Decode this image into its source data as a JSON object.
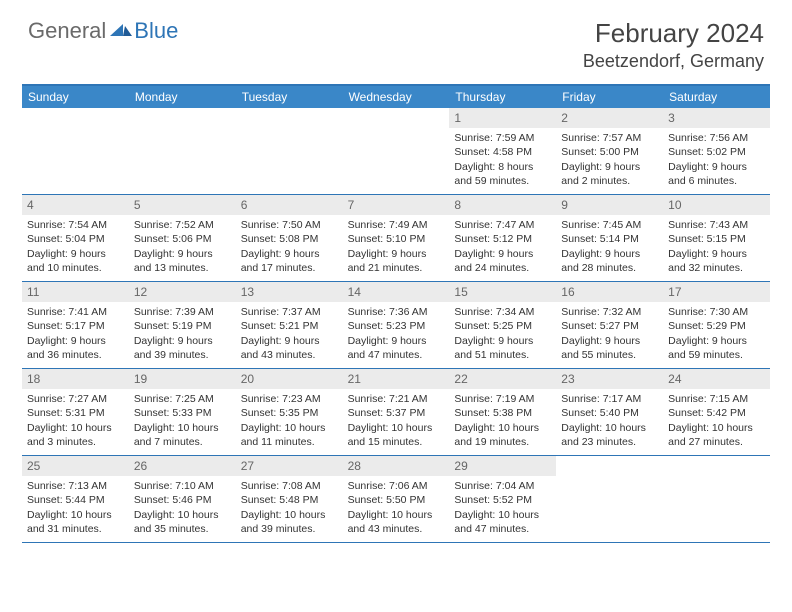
{
  "logo": {
    "general": "General",
    "blue": "Blue"
  },
  "title": "February 2024",
  "location": "Beetzendorf, Germany",
  "colors": {
    "header_bar": "#3a87c8",
    "border": "#2e75b6",
    "daynum_bg": "#ebebeb",
    "text": "#333333",
    "logo_gray": "#6a6a6a",
    "logo_blue": "#2e75b6"
  },
  "weekdays": [
    "Sunday",
    "Monday",
    "Tuesday",
    "Wednesday",
    "Thursday",
    "Friday",
    "Saturday"
  ],
  "weeks": [
    [
      null,
      null,
      null,
      null,
      {
        "n": "1",
        "sr": "Sunrise: 7:59 AM",
        "ss": "Sunset: 4:58 PM",
        "d1": "Daylight: 8 hours",
        "d2": "and 59 minutes."
      },
      {
        "n": "2",
        "sr": "Sunrise: 7:57 AM",
        "ss": "Sunset: 5:00 PM",
        "d1": "Daylight: 9 hours",
        "d2": "and 2 minutes."
      },
      {
        "n": "3",
        "sr": "Sunrise: 7:56 AM",
        "ss": "Sunset: 5:02 PM",
        "d1": "Daylight: 9 hours",
        "d2": "and 6 minutes."
      }
    ],
    [
      {
        "n": "4",
        "sr": "Sunrise: 7:54 AM",
        "ss": "Sunset: 5:04 PM",
        "d1": "Daylight: 9 hours",
        "d2": "and 10 minutes."
      },
      {
        "n": "5",
        "sr": "Sunrise: 7:52 AM",
        "ss": "Sunset: 5:06 PM",
        "d1": "Daylight: 9 hours",
        "d2": "and 13 minutes."
      },
      {
        "n": "6",
        "sr": "Sunrise: 7:50 AM",
        "ss": "Sunset: 5:08 PM",
        "d1": "Daylight: 9 hours",
        "d2": "and 17 minutes."
      },
      {
        "n": "7",
        "sr": "Sunrise: 7:49 AM",
        "ss": "Sunset: 5:10 PM",
        "d1": "Daylight: 9 hours",
        "d2": "and 21 minutes."
      },
      {
        "n": "8",
        "sr": "Sunrise: 7:47 AM",
        "ss": "Sunset: 5:12 PM",
        "d1": "Daylight: 9 hours",
        "d2": "and 24 minutes."
      },
      {
        "n": "9",
        "sr": "Sunrise: 7:45 AM",
        "ss": "Sunset: 5:14 PM",
        "d1": "Daylight: 9 hours",
        "d2": "and 28 minutes."
      },
      {
        "n": "10",
        "sr": "Sunrise: 7:43 AM",
        "ss": "Sunset: 5:15 PM",
        "d1": "Daylight: 9 hours",
        "d2": "and 32 minutes."
      }
    ],
    [
      {
        "n": "11",
        "sr": "Sunrise: 7:41 AM",
        "ss": "Sunset: 5:17 PM",
        "d1": "Daylight: 9 hours",
        "d2": "and 36 minutes."
      },
      {
        "n": "12",
        "sr": "Sunrise: 7:39 AM",
        "ss": "Sunset: 5:19 PM",
        "d1": "Daylight: 9 hours",
        "d2": "and 39 minutes."
      },
      {
        "n": "13",
        "sr": "Sunrise: 7:37 AM",
        "ss": "Sunset: 5:21 PM",
        "d1": "Daylight: 9 hours",
        "d2": "and 43 minutes."
      },
      {
        "n": "14",
        "sr": "Sunrise: 7:36 AM",
        "ss": "Sunset: 5:23 PM",
        "d1": "Daylight: 9 hours",
        "d2": "and 47 minutes."
      },
      {
        "n": "15",
        "sr": "Sunrise: 7:34 AM",
        "ss": "Sunset: 5:25 PM",
        "d1": "Daylight: 9 hours",
        "d2": "and 51 minutes."
      },
      {
        "n": "16",
        "sr": "Sunrise: 7:32 AM",
        "ss": "Sunset: 5:27 PM",
        "d1": "Daylight: 9 hours",
        "d2": "and 55 minutes."
      },
      {
        "n": "17",
        "sr": "Sunrise: 7:30 AM",
        "ss": "Sunset: 5:29 PM",
        "d1": "Daylight: 9 hours",
        "d2": "and 59 minutes."
      }
    ],
    [
      {
        "n": "18",
        "sr": "Sunrise: 7:27 AM",
        "ss": "Sunset: 5:31 PM",
        "d1": "Daylight: 10 hours",
        "d2": "and 3 minutes."
      },
      {
        "n": "19",
        "sr": "Sunrise: 7:25 AM",
        "ss": "Sunset: 5:33 PM",
        "d1": "Daylight: 10 hours",
        "d2": "and 7 minutes."
      },
      {
        "n": "20",
        "sr": "Sunrise: 7:23 AM",
        "ss": "Sunset: 5:35 PM",
        "d1": "Daylight: 10 hours",
        "d2": "and 11 minutes."
      },
      {
        "n": "21",
        "sr": "Sunrise: 7:21 AM",
        "ss": "Sunset: 5:37 PM",
        "d1": "Daylight: 10 hours",
        "d2": "and 15 minutes."
      },
      {
        "n": "22",
        "sr": "Sunrise: 7:19 AM",
        "ss": "Sunset: 5:38 PM",
        "d1": "Daylight: 10 hours",
        "d2": "and 19 minutes."
      },
      {
        "n": "23",
        "sr": "Sunrise: 7:17 AM",
        "ss": "Sunset: 5:40 PM",
        "d1": "Daylight: 10 hours",
        "d2": "and 23 minutes."
      },
      {
        "n": "24",
        "sr": "Sunrise: 7:15 AM",
        "ss": "Sunset: 5:42 PM",
        "d1": "Daylight: 10 hours",
        "d2": "and 27 minutes."
      }
    ],
    [
      {
        "n": "25",
        "sr": "Sunrise: 7:13 AM",
        "ss": "Sunset: 5:44 PM",
        "d1": "Daylight: 10 hours",
        "d2": "and 31 minutes."
      },
      {
        "n": "26",
        "sr": "Sunrise: 7:10 AM",
        "ss": "Sunset: 5:46 PM",
        "d1": "Daylight: 10 hours",
        "d2": "and 35 minutes."
      },
      {
        "n": "27",
        "sr": "Sunrise: 7:08 AM",
        "ss": "Sunset: 5:48 PM",
        "d1": "Daylight: 10 hours",
        "d2": "and 39 minutes."
      },
      {
        "n": "28",
        "sr": "Sunrise: 7:06 AM",
        "ss": "Sunset: 5:50 PM",
        "d1": "Daylight: 10 hours",
        "d2": "and 43 minutes."
      },
      {
        "n": "29",
        "sr": "Sunrise: 7:04 AM",
        "ss": "Sunset: 5:52 PM",
        "d1": "Daylight: 10 hours",
        "d2": "and 47 minutes."
      },
      null,
      null
    ]
  ]
}
